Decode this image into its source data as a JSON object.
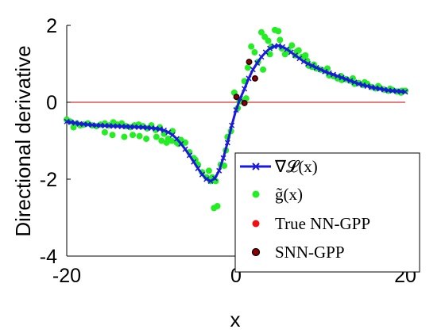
{
  "chart_data": {
    "type": "scatter",
    "title": "",
    "xlabel": "x",
    "ylabel": "Directional derivative",
    "xlim": [
      -20,
      20
    ],
    "ylim": [
      -4,
      2
    ],
    "xticks": [
      -20,
      0,
      20
    ],
    "xtick_labels": [
      "-20",
      "0",
      "20"
    ],
    "yticks": [
      -4,
      -2,
      0,
      2
    ],
    "ytick_labels": [
      "-4",
      "-2",
      "0",
      "2"
    ],
    "grid": false,
    "legend_position": "bottom-right",
    "reference_line": {
      "y": 0,
      "color": "#cc0000"
    },
    "series": [
      {
        "name": "∇𝓛(x)",
        "style": "line-cross",
        "color": "#1a1adb",
        "x": [
          -20,
          -19.5,
          -19,
          -18.5,
          -18,
          -17.5,
          -17,
          -16.5,
          -16,
          -15.5,
          -15,
          -14.5,
          -14,
          -13.5,
          -13,
          -12.5,
          -12,
          -11.5,
          -11,
          -10.5,
          -10,
          -9.5,
          -9,
          -8.5,
          -8,
          -7.5,
          -7,
          -6.5,
          -6,
          -5.5,
          -5,
          -4.5,
          -4,
          -3.5,
          -3,
          -2.5,
          -2,
          -1.5,
          -1,
          -0.5,
          0,
          0.5,
          1,
          1.5,
          2,
          2.5,
          3,
          3.5,
          4,
          4.5,
          5,
          5.5,
          6,
          6.5,
          7,
          7.5,
          8,
          8.5,
          9,
          9.5,
          10,
          10.5,
          11,
          11.5,
          12,
          12.5,
          13,
          13.5,
          14,
          14.5,
          15,
          15.5,
          16,
          16.5,
          17,
          17.5,
          18,
          18.5,
          19,
          19.5,
          20
        ],
        "y": [
          -0.5,
          -0.52,
          -0.54,
          -0.56,
          -0.57,
          -0.58,
          -0.59,
          -0.6,
          -0.6,
          -0.61,
          -0.61,
          -0.62,
          -0.62,
          -0.63,
          -0.63,
          -0.64,
          -0.64,
          -0.65,
          -0.65,
          -0.66,
          -0.67,
          -0.68,
          -0.7,
          -0.73,
          -0.78,
          -0.85,
          -0.95,
          -1.08,
          -1.22,
          -1.38,
          -1.55,
          -1.72,
          -1.88,
          -2.0,
          -2.05,
          -1.98,
          -1.78,
          -1.45,
          -1.05,
          -0.6,
          -0.2,
          0.1,
          0.35,
          0.62,
          0.85,
          1.02,
          1.18,
          1.3,
          1.4,
          1.45,
          1.47,
          1.44,
          1.38,
          1.3,
          1.22,
          1.14,
          1.06,
          1.0,
          0.95,
          0.9,
          0.85,
          0.8,
          0.76,
          0.72,
          0.68,
          0.64,
          0.6,
          0.56,
          0.52,
          0.48,
          0.45,
          0.42,
          0.39,
          0.37,
          0.35,
          0.33,
          0.31,
          0.3,
          0.29,
          0.28,
          0.27
        ]
      },
      {
        "name": "g̃(x)",
        "style": "dots",
        "color": "#22ee22",
        "x": [
          -20,
          -19.6,
          -19.2,
          -18.8,
          -18.4,
          -18,
          -17.5,
          -17,
          -16.5,
          -16,
          -15.5,
          -15,
          -14.5,
          -14,
          -13.5,
          -13,
          -12.5,
          -12,
          -11.5,
          -11,
          -10.5,
          -10,
          -9.5,
          -9,
          -8.5,
          -8,
          -7.5,
          -7,
          -6.5,
          -6,
          -5.5,
          -5,
          -4.5,
          -4,
          -3.5,
          -3,
          -2.6,
          -2.2,
          -1.8,
          -1.4,
          -1,
          -0.6,
          -0.2,
          0.2,
          0.6,
          1,
          1.4,
          1.8,
          2.2,
          2.6,
          3,
          3.4,
          3.8,
          4.2,
          4.6,
          5,
          5.4,
          5.8,
          6.2,
          6.6,
          7,
          7.4,
          7.8,
          8.2,
          8.6,
          9,
          9.5,
          10,
          10.5,
          11,
          11.5,
          12,
          12.5,
          13,
          13.5,
          14,
          14.5,
          15,
          15.5,
          16,
          16.5,
          17,
          17.5,
          18,
          18.5,
          19,
          19.5,
          20,
          -15.5,
          -14.6,
          -13.2,
          -12.2,
          -11.4,
          -10.6,
          -9.4,
          -8.8,
          -8.2,
          -7.6,
          -6.8,
          -4.8,
          -3.2,
          -2.8,
          -2.4,
          -1.2,
          0.4,
          1.2,
          3.2,
          4.0,
          5.2,
          7.2,
          8.4,
          9.2,
          10.8,
          12.4,
          13.8,
          15.2,
          16.8,
          18.2,
          19.6
        ],
        "y": [
          -0.45,
          -0.5,
          -0.65,
          -0.55,
          -0.6,
          -0.58,
          -0.55,
          -0.6,
          -0.62,
          -0.58,
          -0.55,
          -0.6,
          -0.52,
          -0.58,
          -0.55,
          -0.62,
          -0.65,
          -0.6,
          -0.58,
          -0.62,
          -0.68,
          -0.6,
          -0.72,
          -0.65,
          -0.82,
          -0.95,
          -0.75,
          -1.05,
          -0.98,
          -1.05,
          -1.3,
          -1.45,
          -1.62,
          -1.82,
          -1.95,
          -2.05,
          -2.75,
          -2.7,
          -1.62,
          -1.65,
          -0.9,
          -0.75,
          0.25,
          -0.15,
          0.05,
          0.55,
          0.9,
          1.45,
          1.3,
          1.05,
          1.82,
          1.7,
          1.6,
          1.45,
          1.88,
          1.85,
          1.4,
          1.25,
          1.35,
          1.48,
          1.22,
          1.35,
          1.18,
          1.22,
          0.95,
          0.92,
          0.88,
          0.85,
          0.82,
          0.7,
          0.68,
          0.62,
          0.58,
          0.6,
          0.56,
          0.48,
          0.5,
          0.45,
          0.48,
          0.4,
          0.36,
          0.38,
          0.33,
          0.3,
          0.32,
          0.28,
          0.25,
          0.3,
          -0.78,
          -0.85,
          -0.9,
          -0.85,
          -0.88,
          -0.95,
          -0.9,
          -1.0,
          -1.05,
          -1.0,
          -1.08,
          -1.5,
          -1.78,
          -1.95,
          -2.05,
          -1.25,
          0.02,
          0.1,
          0.85,
          1.25,
          1.62,
          1.32,
          1.08,
          0.98,
          0.88,
          0.68,
          0.62,
          0.52,
          0.42,
          0.35,
          0.3
        ]
      },
      {
        "name": "True NN-GPP",
        "style": "dots",
        "color": "#ee1111",
        "x": [
          0.05,
          1.0,
          1.55,
          2.25
        ],
        "y": [
          0.14,
          -0.02,
          1.05,
          0.62
        ]
      },
      {
        "name": "SNN-GPP",
        "style": "dots-outlined",
        "color": "#8b0000",
        "x": [
          0.05,
          1.0,
          1.55,
          2.25
        ],
        "y": [
          0.14,
          -0.02,
          1.05,
          0.62
        ]
      }
    ]
  }
}
